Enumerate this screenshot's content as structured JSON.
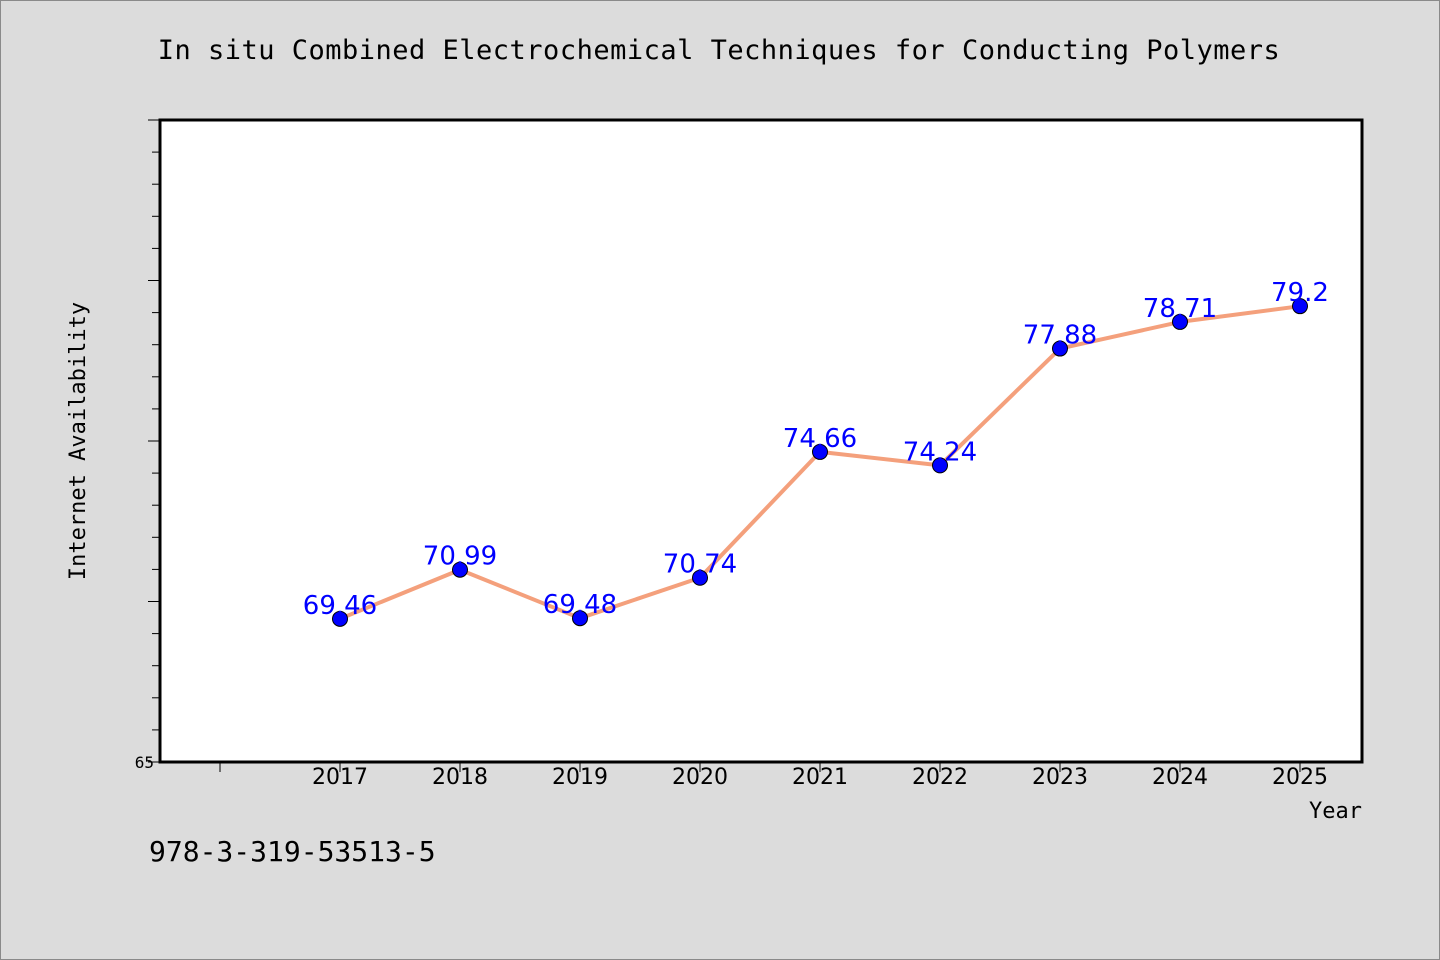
{
  "chart_data": {
    "type": "line",
    "title": "In situ Combined Electrochemical Techniques for Conducting Polymers",
    "xlabel": "Year",
    "ylabel": "Internet Availability",
    "categories": [
      "2017",
      "2018",
      "2019",
      "2020",
      "2021",
      "2022",
      "2023",
      "2024",
      "2025"
    ],
    "series": [
      {
        "values": [
          69.46,
          70.99,
          69.48,
          70.74,
          74.66,
          74.24,
          77.88,
          78.71,
          79.2
        ],
        "data_labels": [
          "69.46",
          "70.99",
          "69.48",
          "70.74",
          "74.66",
          "74.24",
          "77.88",
          "78.71",
          "79.2"
        ]
      }
    ],
    "ylim": [
      65,
      85
    ],
    "y_tick_labels": [
      "65"
    ],
    "grid": false,
    "line_color": "#f4a07c",
    "marker_color": "#0000ff",
    "label_color": "#0000ff",
    "background_color": "#dcdcdc",
    "plot_background_color": "#ffffff"
  },
  "footer": {
    "isbn": "978-3-319-53513-5"
  }
}
